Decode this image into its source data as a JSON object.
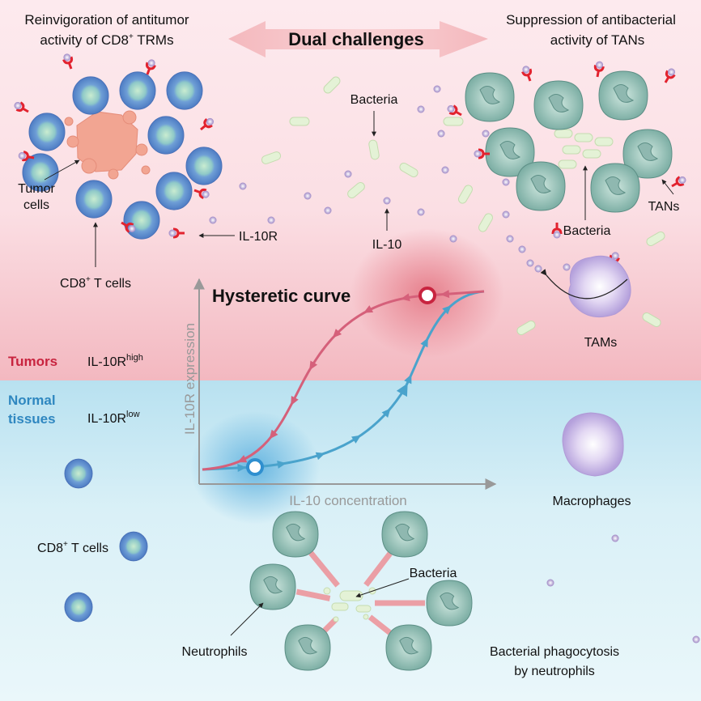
{
  "header": {
    "left_title_line1": "Reinvigoration of antitumor",
    "left_title_line2": "activity of CD8",
    "left_title_sup": "+",
    "left_title_tail": " TRMs",
    "center_title": "Dual challenges",
    "right_title_line1": "Suppression of antibacterial",
    "right_title_line2": "activity of TANs"
  },
  "tumor_region": {
    "tumor_cells_line1": "Tumor",
    "tumor_cells_line2": "cells",
    "cd8_label": "CD8",
    "cd8_sup": "+",
    "cd8_tail": " T cells",
    "il10r_label": "IL-10R",
    "il10_label": "IL-10",
    "bacteria_label": "Bacteria",
    "tan_bacteria_label": "Bacteria",
    "tans_label": "TANs",
    "tams_label": "TAMs"
  },
  "side_labels": {
    "tumors": "Tumors",
    "tumors_expr": "IL-10R",
    "tumors_sup": "high",
    "normal_line1": "Normal",
    "normal_line2": "tissues",
    "normal_expr": "IL-10R",
    "normal_sup": "low"
  },
  "curve": {
    "title": "Hysteretic curve",
    "y_axis_label": "IL-10R expression",
    "x_axis_label": "IL-10 concentration",
    "high_color": "#c8243f",
    "low_color": "#3a8fc5"
  },
  "normal_region": {
    "macrophages_label": "Macrophages",
    "cd8_label": "CD8",
    "cd8_sup": "+",
    "cd8_tail": " T cells",
    "bacteria_label": "Bacteria",
    "neutrophils_label": "Neutrophils",
    "phagocytosis_line1": "Bacterial phagocytosis",
    "phagocytosis_line2": "by neutrophils"
  },
  "colors": {
    "tumor_bg": "#fde8ec",
    "normal_bg": "#c6e8f3"
  }
}
